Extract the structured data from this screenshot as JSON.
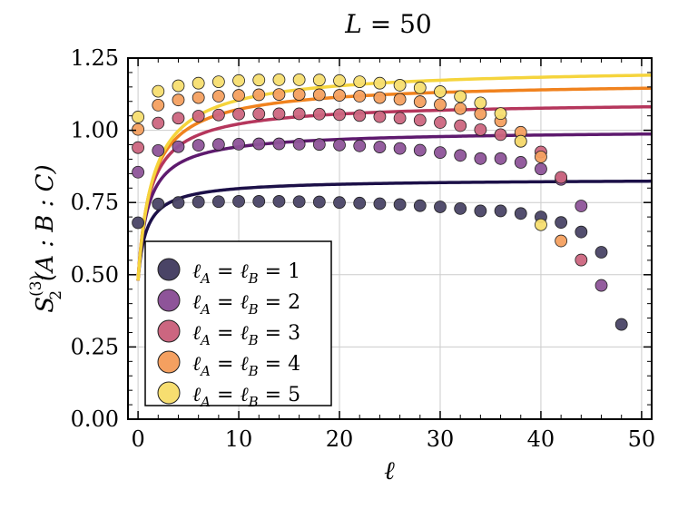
{
  "chart_data": {
    "type": "scatter",
    "title_var": "L",
    "title_eq": " = 50",
    "xlabel": "ℓ",
    "ylabel_main": "S",
    "ylabel_sub": "2",
    "ylabel_sup": "(3)",
    "ylabel_args": "(A : B : C)",
    "xlim": [
      -1,
      51
    ],
    "ylim": [
      0.0,
      1.25
    ],
    "x_ticks": [
      0,
      10,
      20,
      30,
      40,
      50
    ],
    "x_tick_labels": [
      "0",
      "10",
      "20",
      "30",
      "40",
      "50"
    ],
    "y_ticks": [
      0.0,
      0.25,
      0.5,
      0.75,
      1.0,
      1.25
    ],
    "y_tick_labels": [
      "0.00",
      "0.25",
      "0.50",
      "0.75",
      "1.00",
      "1.25"
    ],
    "grid": true,
    "legend_position": "lower-left",
    "series": [
      {
        "name": "ℓA = ℓB = 1",
        "legend_value": "1",
        "color": "#1c1048",
        "marker_color": "#4a4466",
        "points": [
          [
            0,
            0.68
          ],
          [
            2,
            0.745
          ],
          [
            4,
            0.75
          ],
          [
            6,
            0.752
          ],
          [
            8,
            0.753
          ],
          [
            10,
            0.754
          ],
          [
            12,
            0.754
          ],
          [
            14,
            0.754
          ],
          [
            16,
            0.753
          ],
          [
            18,
            0.752
          ],
          [
            20,
            0.75
          ],
          [
            22,
            0.748
          ],
          [
            24,
            0.746
          ],
          [
            26,
            0.743
          ],
          [
            28,
            0.739
          ],
          [
            30,
            0.735
          ],
          [
            32,
            0.729
          ],
          [
            34,
            0.721
          ],
          [
            36,
            0.721
          ],
          [
            38,
            0.712
          ],
          [
            40,
            0.7
          ],
          [
            42,
            0.681
          ],
          [
            44,
            0.648
          ],
          [
            46,
            0.578
          ],
          [
            48,
            0.328
          ]
        ],
        "asymptote": 0.833
      },
      {
        "name": "ℓA = ℓB = 2",
        "legend_value": "2",
        "color": "#5e1a6e",
        "marker_color": "#8e5499",
        "points": [
          [
            0,
            0.855
          ],
          [
            2,
            0.93
          ],
          [
            4,
            0.943
          ],
          [
            6,
            0.948
          ],
          [
            8,
            0.951
          ],
          [
            10,
            0.952
          ],
          [
            12,
            0.953
          ],
          [
            14,
            0.953
          ],
          [
            16,
            0.952
          ],
          [
            18,
            0.951
          ],
          [
            20,
            0.949
          ],
          [
            22,
            0.946
          ],
          [
            24,
            0.942
          ],
          [
            26,
            0.937
          ],
          [
            28,
            0.931
          ],
          [
            30,
            0.923
          ],
          [
            32,
            0.913
          ],
          [
            34,
            0.902
          ],
          [
            36,
            0.902
          ],
          [
            38,
            0.889
          ],
          [
            40,
            0.866
          ],
          [
            42,
            0.83
          ],
          [
            44,
            0.738
          ],
          [
            46,
            0.463
          ]
        ],
        "asymptote": 1.003
      },
      {
        "name": "ℓA = ℓB = 3",
        "legend_value": "3",
        "color": "#b5365c",
        "marker_color": "#cc6680",
        "points": [
          [
            0,
            0.94
          ],
          [
            2,
            1.025
          ],
          [
            4,
            1.042
          ],
          [
            6,
            1.049
          ],
          [
            8,
            1.053
          ],
          [
            10,
            1.056
          ],
          [
            12,
            1.057
          ],
          [
            14,
            1.057
          ],
          [
            16,
            1.057
          ],
          [
            18,
            1.056
          ],
          [
            20,
            1.054
          ],
          [
            22,
            1.051
          ],
          [
            24,
            1.047
          ],
          [
            26,
            1.042
          ],
          [
            28,
            1.035
          ],
          [
            30,
            1.027
          ],
          [
            32,
            1.016
          ],
          [
            34,
            1.002
          ],
          [
            36,
            0.985
          ],
          [
            38,
            0.962
          ],
          [
            40,
            0.925
          ],
          [
            42,
            0.837
          ],
          [
            44,
            0.551
          ]
        ],
        "asymptote": 1.103
      },
      {
        "name": "ℓA = ℓB = 4",
        "legend_value": "4",
        "color": "#f0821e",
        "marker_color": "#f4a060",
        "points": [
          [
            0,
            1.003
          ],
          [
            2,
            1.087
          ],
          [
            4,
            1.105
          ],
          [
            6,
            1.113
          ],
          [
            8,
            1.118
          ],
          [
            10,
            1.121
          ],
          [
            12,
            1.123
          ],
          [
            14,
            1.124
          ],
          [
            16,
            1.124
          ],
          [
            18,
            1.123
          ],
          [
            20,
            1.121
          ],
          [
            22,
            1.118
          ],
          [
            24,
            1.113
          ],
          [
            26,
            1.107
          ],
          [
            28,
            1.099
          ],
          [
            30,
            1.089
          ],
          [
            32,
            1.075
          ],
          [
            34,
            1.057
          ],
          [
            36,
            1.032
          ],
          [
            38,
            0.993
          ],
          [
            40,
            0.908
          ],
          [
            42,
            0.617
          ]
        ],
        "asymptote": 1.173
      },
      {
        "name": "ℓA = ℓB = 5",
        "legend_value": "5",
        "color": "#f5d43c",
        "marker_color": "#f7de70",
        "points": [
          [
            0,
            1.046
          ],
          [
            2,
            1.135
          ],
          [
            4,
            1.154
          ],
          [
            6,
            1.163
          ],
          [
            8,
            1.168
          ],
          [
            10,
            1.172
          ],
          [
            12,
            1.174
          ],
          [
            14,
            1.175
          ],
          [
            16,
            1.175
          ],
          [
            18,
            1.174
          ],
          [
            20,
            1.172
          ],
          [
            22,
            1.168
          ],
          [
            24,
            1.163
          ],
          [
            26,
            1.156
          ],
          [
            28,
            1.147
          ],
          [
            30,
            1.134
          ],
          [
            32,
            1.117
          ],
          [
            34,
            1.095
          ],
          [
            36,
            1.058
          ],
          [
            38,
            0.962
          ],
          [
            40,
            0.673
          ]
        ],
        "asymptote": 1.223
      }
    ]
  }
}
